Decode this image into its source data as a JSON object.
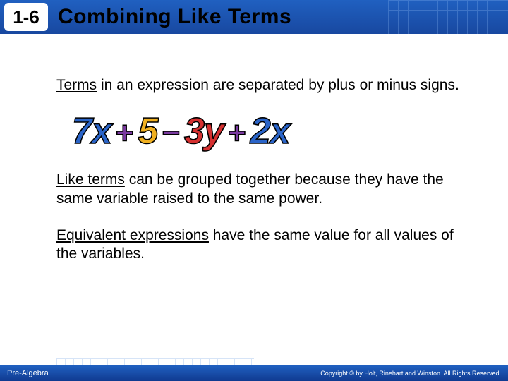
{
  "header": {
    "section_number": "1-6",
    "title": "Combining Like Terms",
    "bg_color": "#1b52b0",
    "grid_color": "#7aa8e8"
  },
  "body": {
    "para1_u": "Terms",
    "para1_rest": " in an expression are separated by plus or minus signs.",
    "para2_u": "Like terms",
    "para2_rest": " can be grouped together because they have the same variable raised to the same power.",
    "para3_u": "Equivalent expressions",
    "para3_rest": " have the same value for all values of the variables.",
    "text_fontsize": 21
  },
  "expression": {
    "terms": [
      {
        "text": "7x",
        "color": "#2a64c8"
      },
      {
        "text": "+",
        "color": "#7a3aa0",
        "op": true
      },
      {
        "text": "5",
        "color": "#f0b020"
      },
      {
        "text": "−",
        "color": "#7a3aa0",
        "op": true
      },
      {
        "text": "3y",
        "color": "#d43030"
      },
      {
        "text": "+",
        "color": "#7a3aa0",
        "op": true
      },
      {
        "text": "2x",
        "color": "#2a64c8"
      }
    ],
    "fontsize": 52,
    "stroke_color": "#000000"
  },
  "footer": {
    "left": "Pre-Algebra",
    "right": "Copyright © by Holt, Rinehart and Winston. All Rights Reserved.",
    "bg_color": "#1b52b0"
  }
}
